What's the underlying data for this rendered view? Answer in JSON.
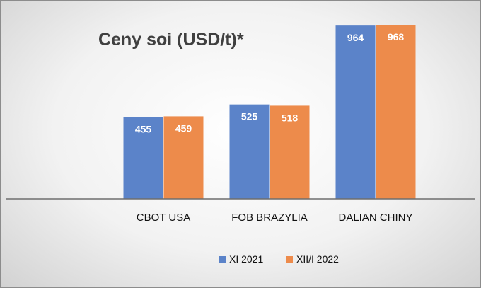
{
  "chart_data": {
    "type": "bar",
    "title": "Ceny soi (USD/t)*",
    "xlabel": "",
    "ylabel": "",
    "categories": [
      "CBOT USA",
      "FOB BRAZYLIA",
      "DALIAN CHINY"
    ],
    "series": [
      {
        "name": "XI 2021",
        "values": [
          455,
          525,
          964
        ],
        "color": "#5b83c9"
      },
      {
        "name": "XII/I 2022",
        "values": [
          459,
          518,
          968
        ],
        "color": "#ed8b4b"
      }
    ],
    "ylim": [
      0,
      1000
    ],
    "grid": false,
    "data_labels": true,
    "legend_position": "bottom"
  }
}
